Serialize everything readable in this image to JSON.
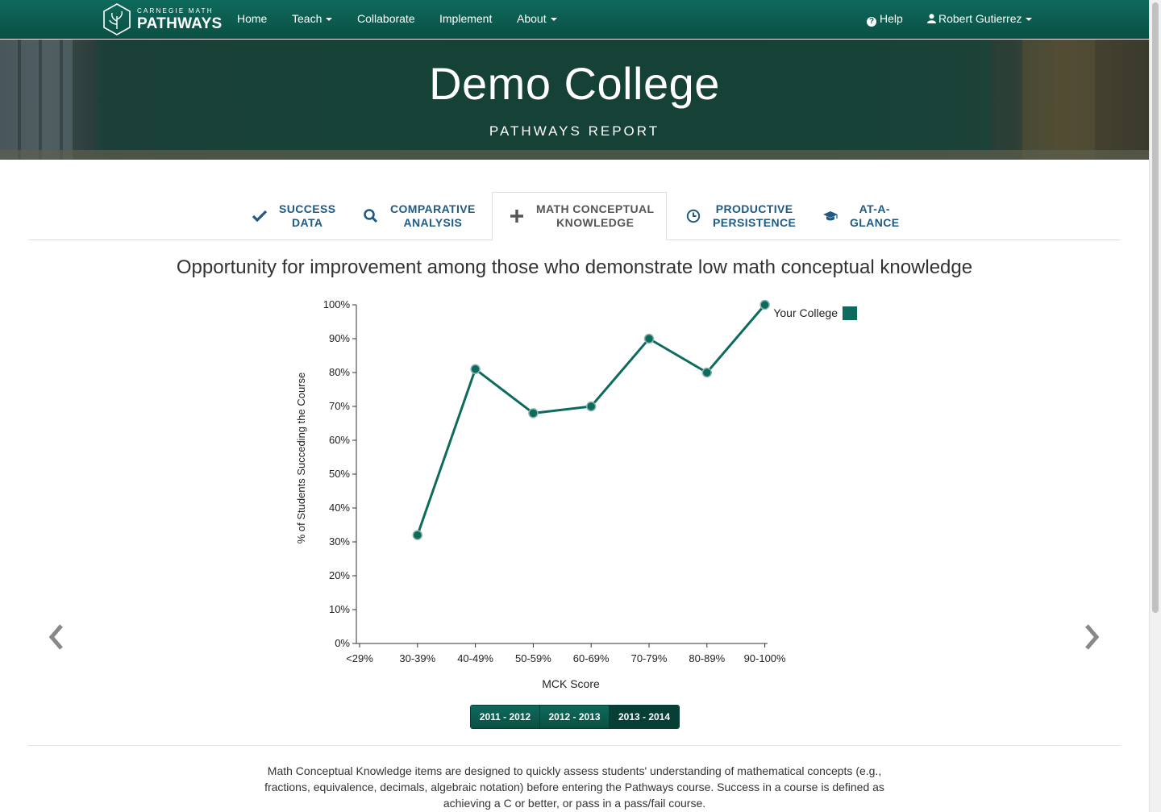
{
  "navbar": {
    "logo_small": "CARNEGIE MATH",
    "logo_big": "PATHWAYS",
    "items": [
      {
        "label": "Home",
        "dropdown": false
      },
      {
        "label": "Teach",
        "dropdown": true
      },
      {
        "label": "Collaborate",
        "dropdown": false
      },
      {
        "label": "Implement",
        "dropdown": false
      },
      {
        "label": "About",
        "dropdown": true
      }
    ],
    "help": "Help",
    "help_icon": "question-circle-icon",
    "user": "Robert Gutierrez",
    "user_icon": "user-icon",
    "brand_color": "#0b5a4d"
  },
  "hero": {
    "title": "Demo College",
    "subtitle": "PATHWAYS REPORT"
  },
  "tabs": [
    {
      "line1": "SUCCESS",
      "line2": "DATA",
      "icon": "check-icon",
      "active": false
    },
    {
      "line1": "COMPARATIVE",
      "line2": "ANALYSIS",
      "icon": "search-icon",
      "active": false
    },
    {
      "line1": "MATH CONCEPTUAL",
      "line2": "KNOWLEDGE",
      "icon": "plus-icon",
      "active": true
    },
    {
      "line1": "PRODUCTIVE",
      "line2": "PERSISTENCE",
      "icon": "clock-icon",
      "active": false
    },
    {
      "line1": "AT-A-",
      "line2": "GLANCE",
      "icon": "graduation-cap-icon",
      "active": false
    }
  ],
  "chart_data": {
    "type": "line",
    "title": "Opportunity for improvement among those who demonstrate low math conceptual knowledge",
    "xlabel": "MCK Score",
    "ylabel": "% of Students Succeding the Course",
    "categories": [
      "<29%",
      "30-39%",
      "40-49%",
      "50-59%",
      "60-69%",
      "70-79%",
      "80-89%",
      "90-100%"
    ],
    "y_ticks": [
      "0%",
      "10%",
      "20%",
      "30%",
      "40%",
      "50%",
      "60%",
      "70%",
      "80%",
      "90%",
      "100%"
    ],
    "ylim": [
      0,
      100
    ],
    "series": [
      {
        "name": "Your College",
        "color": "#0d6b5e",
        "values": [
          null,
          32,
          81,
          68,
          70,
          90,
          80,
          100
        ]
      }
    ],
    "legend_position": "top-right",
    "grid": false
  },
  "years": {
    "options": [
      "2011 - 2012",
      "2012 - 2013",
      "2013 - 2014"
    ],
    "selected": "2013 - 2014"
  },
  "description": "Math Conceptual Knowledge items are designed to quickly assess students' understanding of mathematical concepts (e.g., fractions, equivalence, decimals, algebraic notation) before entering the Pathways course. Success in a course is defined as achieving a C or better, or pass in a pass/fail course.",
  "carousel": {
    "prev_icon": "chevron-left-icon",
    "next_icon": "chevron-right-icon"
  }
}
